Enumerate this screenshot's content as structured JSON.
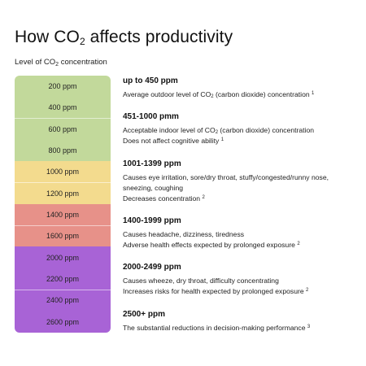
{
  "title": {
    "main": "How CO",
    "sub": "2",
    "rest": " affects productivity"
  },
  "subtitle": {
    "main": "Level of CO",
    "sub": "2",
    "rest": "  concentration"
  },
  "colors": {
    "green": "#c2d99b",
    "yellow": "#f3db8e",
    "red": "#e79189",
    "purple": "#a863d6"
  },
  "scale": {
    "ticks": [
      "200 ppm",
      "400 ppm",
      "600 ppm",
      "800 ppm",
      "1000 ppm",
      "1200 ppm",
      "1400 ppm",
      "1600 ppm",
      "2000 ppm",
      "2200 ppm",
      "2400 ppm",
      "2600 ppm"
    ]
  },
  "levels": [
    {
      "heading": "up to 450 ppm",
      "line1": {
        "a": "Average outdoor level of CO",
        "sub": "2",
        "b": " (carbon dioxide) concentration ",
        "sup": "1"
      }
    },
    {
      "heading": "451-1000 pmm",
      "line1": {
        "a": "Acceptable indoor level of CO",
        "sub": "2",
        "b": " (carbon dioxide) concentration"
      },
      "line2": {
        "a": "Does not affect cognitive ability ",
        "sup": "1"
      }
    },
    {
      "heading": "1001-1399 ppm",
      "line1": "Causes eye irritation, sore/dry throat, stuffy/congested/runny nose, sneezing, coughing",
      "line2": {
        "a": "Decreases concentration ",
        "sup": "2"
      }
    },
    {
      "heading": "1400-1999 ppm",
      "line1": "Causes headache, dizziness, tiredness",
      "line2": {
        "a": "Adverse health effects expected by prolonged exposure ",
        "sup": "2"
      }
    },
    {
      "heading": "2000-2499 ppm",
      "line1": "Causes wheeze, dry throat, difficulty concentrating",
      "line2": {
        "a": "Increases risks for health expected by prolonged exposure ",
        "sup": "2"
      }
    },
    {
      "heading": "2500+ ppm",
      "line1": {
        "a": "The substantial reductions in decision-making performance ",
        "sup": "3"
      }
    }
  ]
}
